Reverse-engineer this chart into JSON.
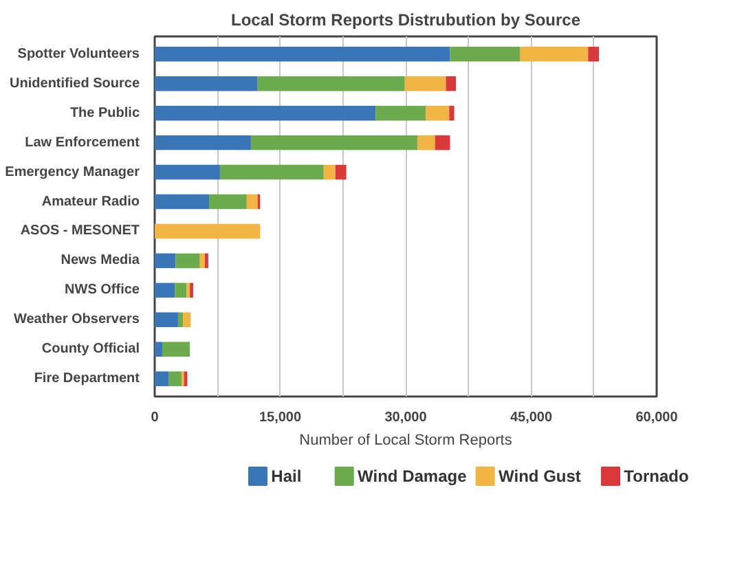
{
  "chart_data": {
    "type": "bar",
    "orientation": "horizontal",
    "stacked": true,
    "title": "Local Storm Reports Distrubution by Source",
    "xlabel": "Number of Local Storm Reports",
    "categories": [
      "Spotter Volunteers",
      "Unidentified Source",
      "The Public",
      "Law Enforcement",
      "Emergency Manager",
      "Amateur Radio",
      "ASOS - MESONET",
      "News Media",
      "NWS Office",
      "Weather Observers",
      "County Official",
      "Fire Department"
    ],
    "series": [
      {
        "name": "Hail",
        "color": "#3a75b8",
        "values": [
          35300,
          12300,
          26400,
          11500,
          7800,
          6500,
          0,
          2500,
          2400,
          2800,
          900,
          1700
        ]
      },
      {
        "name": "Wind Damage",
        "color": "#6cab4d",
        "values": [
          8400,
          17600,
          6000,
          19900,
          12400,
          4500,
          0,
          2900,
          1400,
          600,
          3300,
          1500
        ]
      },
      {
        "name": "Wind Gust",
        "color": "#f2b544",
        "values": [
          8100,
          4900,
          2800,
          2100,
          1400,
          1300,
          12600,
          600,
          400,
          900,
          0,
          300
        ]
      },
      {
        "name": "Tornado",
        "color": "#d9393b",
        "values": [
          1300,
          1200,
          600,
          1800,
          1300,
          300,
          0,
          400,
          400,
          0,
          0,
          400
        ]
      }
    ],
    "xlim": [
      0,
      60000
    ],
    "xticks": [
      0,
      {
        "value": 7500,
        "label": null
      },
      {
        "value": 15000,
        "label": "15,000"
      },
      {
        "value": 22500,
        "label": null
      },
      {
        "value": 30000,
        "label": "30,000"
      },
      {
        "value": 37500,
        "label": null
      },
      {
        "value": 45000,
        "label": "45,000"
      },
      {
        "value": 52500,
        "label": null
      },
      {
        "value": 60000,
        "label": "60,000"
      }
    ],
    "grid": "x",
    "legend": "bottom"
  }
}
